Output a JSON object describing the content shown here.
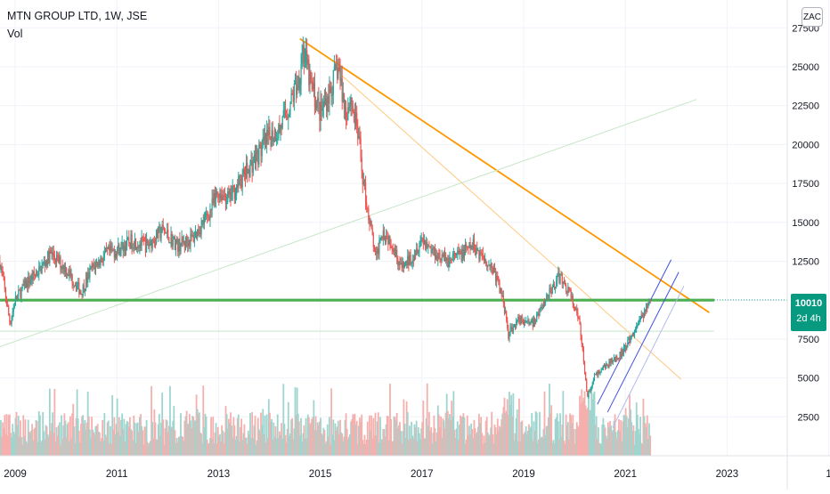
{
  "legend": {
    "symbol_line": "MTN GROUP LTD, 1W, JSE",
    "indicator": "Vol"
  },
  "currency_button": "ZAC",
  "last_price": {
    "value": "10010",
    "countdown": "2d 4h",
    "color": "#089981"
  },
  "colors": {
    "up": "#26a69a",
    "down": "#ef5350",
    "up_vol": "#9fd5cf",
    "down_vol": "#f5b0ae",
    "horizontal_support": "#4caf50",
    "downtrend_line": "#ff9800",
    "channel": "#3f51e0",
    "grid": "#f0f3fa"
  },
  "chart_data": {
    "type": "candlestick",
    "title": "MTN GROUP LTD, 1W, JSE",
    "x_ticks": [
      "2009",
      "2011",
      "2013",
      "2015",
      "2017",
      "2019",
      "2021",
      "2023",
      "1"
    ],
    "y_ticks": [
      2500,
      5000,
      7500,
      10000,
      12500,
      15000,
      17500,
      20000,
      22500,
      25000,
      27500
    ],
    "y_tick_labels": [
      "2500",
      "5000",
      "7500",
      "10000",
      "12500",
      "15000",
      "17500",
      "20000",
      "22500",
      "25000",
      "27500"
    ],
    "xlim": [
      2008.7,
      2024.5
    ],
    "ylim": [
      0,
      28000
    ],
    "price_path": [
      [
        2008.7,
        12500
      ],
      [
        2008.9,
        8500
      ],
      [
        2009.0,
        10000
      ],
      [
        2009.2,
        11000
      ],
      [
        2009.5,
        12000
      ],
      [
        2009.7,
        13000
      ],
      [
        2010.0,
        12000
      ],
      [
        2010.3,
        10500
      ],
      [
        2010.5,
        12000
      ],
      [
        2010.8,
        13000
      ],
      [
        2011.0,
        13200
      ],
      [
        2011.3,
        13800
      ],
      [
        2011.6,
        13500
      ],
      [
        2011.9,
        14500
      ],
      [
        2012.2,
        13500
      ],
      [
        2012.5,
        14000
      ],
      [
        2012.8,
        15500
      ],
      [
        2013.0,
        17000
      ],
      [
        2013.2,
        16500
      ],
      [
        2013.5,
        18000
      ],
      [
        2013.8,
        19500
      ],
      [
        2014.0,
        20500
      ],
      [
        2014.2,
        21000
      ],
      [
        2014.4,
        22500
      ],
      [
        2014.6,
        24500
      ],
      [
        2014.65,
        26300
      ],
      [
        2014.8,
        24000
      ],
      [
        2015.0,
        22000
      ],
      [
        2015.2,
        23500
      ],
      [
        2015.35,
        25000
      ],
      [
        2015.5,
        22000
      ],
      [
        2015.6,
        23000
      ],
      [
        2015.75,
        20500
      ],
      [
        2015.85,
        17500
      ],
      [
        2015.95,
        15500
      ],
      [
        2016.1,
        12500
      ],
      [
        2016.2,
        14500
      ],
      [
        2016.4,
        13800
      ],
      [
        2016.6,
        12000
      ],
      [
        2016.8,
        12800
      ],
      [
        2017.0,
        14000
      ],
      [
        2017.2,
        13200
      ],
      [
        2017.5,
        12500
      ],
      [
        2017.8,
        13000
      ],
      [
        2018.0,
        13500
      ],
      [
        2018.2,
        12800
      ],
      [
        2018.4,
        12000
      ],
      [
        2018.6,
        10000
      ],
      [
        2018.7,
        7800
      ],
      [
        2018.9,
        8800
      ],
      [
        2019.2,
        8500
      ],
      [
        2019.5,
        10500
      ],
      [
        2019.7,
        11500
      ],
      [
        2019.9,
        10500
      ],
      [
        2020.1,
        8500
      ],
      [
        2020.2,
        5500
      ],
      [
        2020.25,
        3800
      ],
      [
        2020.4,
        5200
      ],
      [
        2020.7,
        6000
      ],
      [
        2020.9,
        6500
      ],
      [
        2021.1,
        7500
      ],
      [
        2021.3,
        8800
      ],
      [
        2021.5,
        10000
      ]
    ],
    "volume_max": 5500,
    "trendlines": [
      {
        "name": "downtrend",
        "from": [
          2014.6,
          26800
        ],
        "to": [
          2022.65,
          9200
        ],
        "color": "#ff9800",
        "width": 1.8
      },
      {
        "name": "downtrend-faint",
        "from": [
          2015.3,
          24800
        ],
        "to": [
          2022.1,
          4900
        ],
        "color": "#ffc980",
        "width": 1
      },
      {
        "name": "long-rising",
        "from": [
          2008.7,
          7000
        ],
        "to": [
          2022.4,
          22900
        ],
        "color": "#c8e6c9",
        "width": 1
      },
      {
        "name": "support-10000",
        "from": [
          2008.7,
          10000
        ],
        "to": [
          2022.75,
          10000
        ],
        "color": "#4caf50",
        "width": 3.2
      },
      {
        "name": "level-8000",
        "from": [
          2008.7,
          8000
        ],
        "to": [
          2022.75,
          8000
        ],
        "color": "#c8e6c9",
        "width": 1
      },
      {
        "name": "channel-upper",
        "from": [
          2020.45,
          3300
        ],
        "to": [
          2021.9,
          12600
        ],
        "color": "#3f51e0",
        "width": 1
      },
      {
        "name": "channel-mid",
        "from": [
          2020.65,
          2800
        ],
        "to": [
          2022.05,
          11800
        ],
        "color": "#3f51e0",
        "width": 1
      },
      {
        "name": "channel-lower",
        "from": [
          2020.75,
          1800
        ],
        "to": [
          2022.15,
          10900
        ],
        "color": "#b3bbf0",
        "width": 1
      }
    ]
  }
}
